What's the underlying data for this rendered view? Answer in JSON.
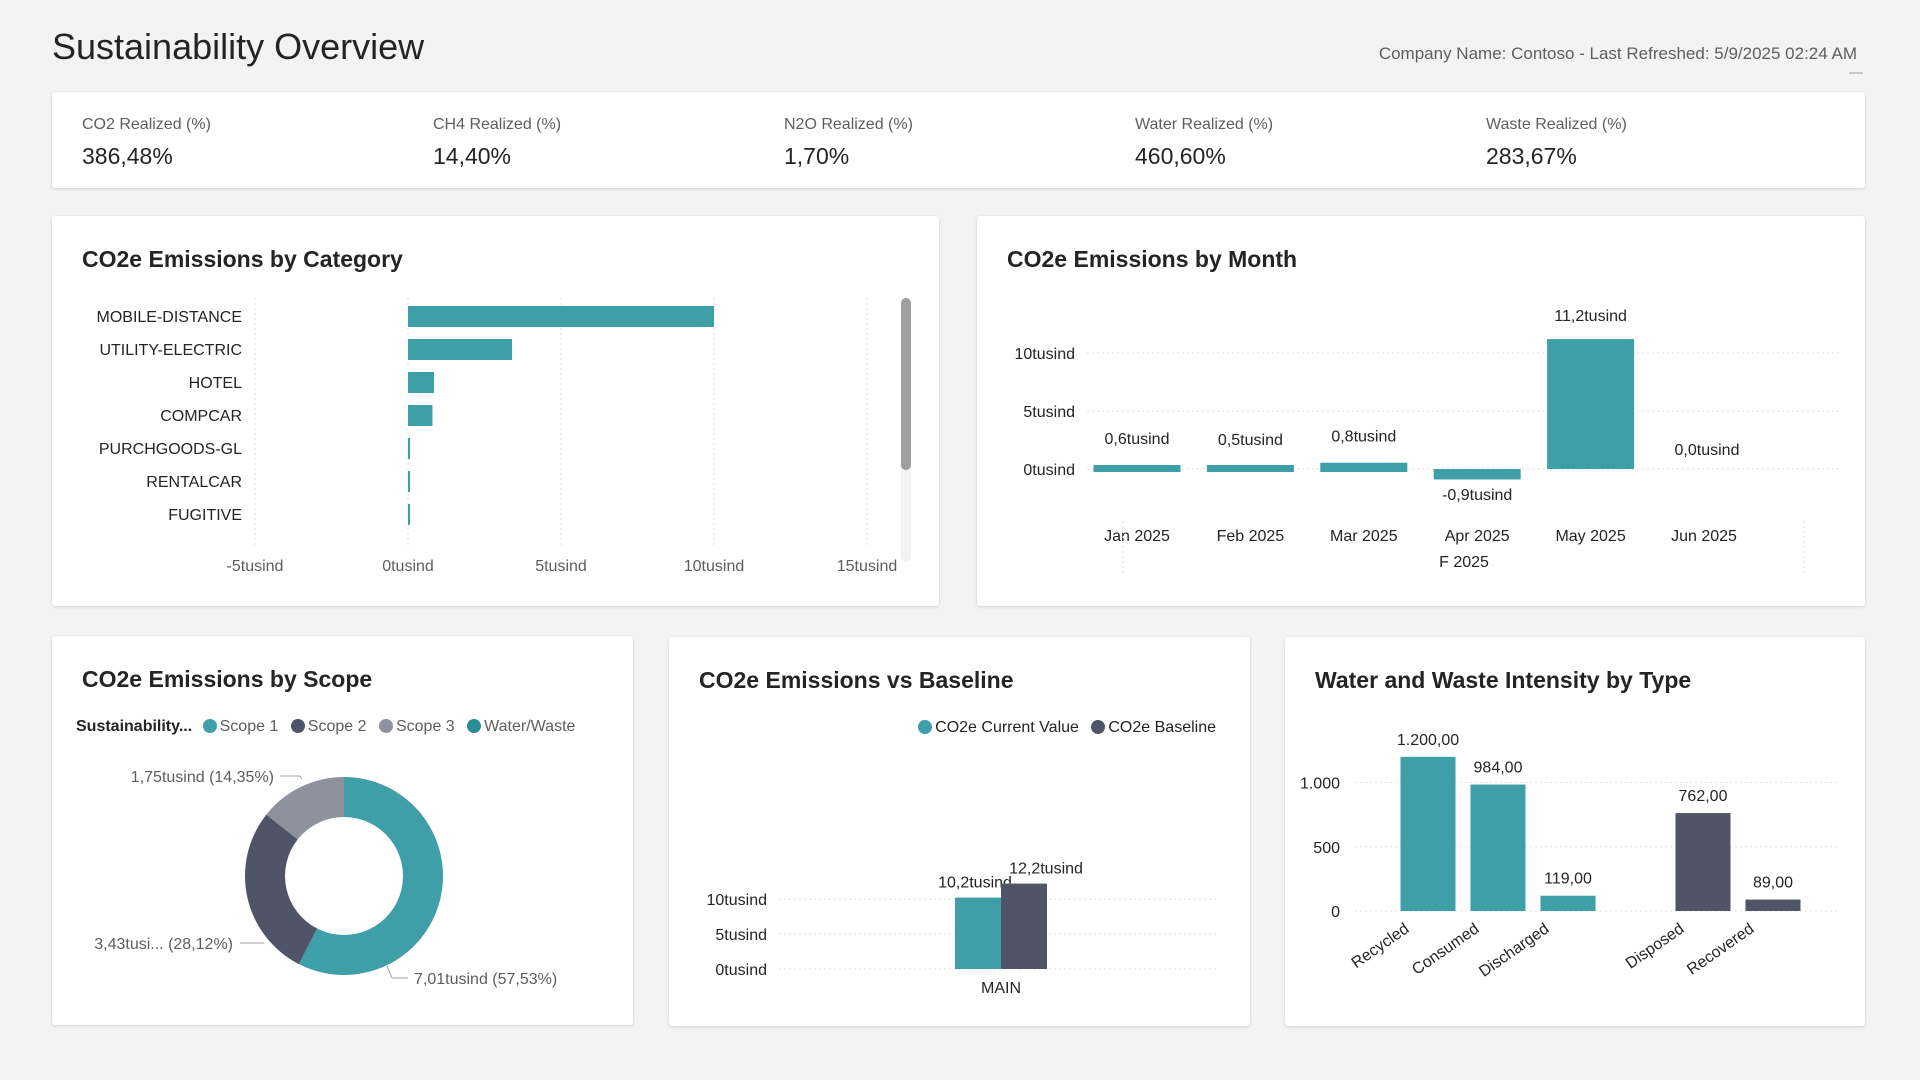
{
  "header": {
    "title": "Sustainability Overview",
    "refresh_info": "Company Name: Contoso - Last Refreshed: 5/9/2025 02:24 AM"
  },
  "kpis": [
    {
      "label": "CO2 Realized (%)",
      "value": "386,48%"
    },
    {
      "label": "CH4 Realized (%)",
      "value": "14,40%"
    },
    {
      "label": "N2O Realized (%)",
      "value": "1,70%"
    },
    {
      "label": "Water Realized (%)",
      "value": "460,60%"
    },
    {
      "label": "Waste Realized (%)",
      "value": "283,67%"
    }
  ],
  "colors": {
    "teal": "#3e9fa8",
    "dark": "#4f5566",
    "gray": "#8e929d",
    "water": "#2c8c95",
    "grid": "#e1dfdd"
  },
  "by_category": {
    "title": "CO2e Emissions by Category"
  },
  "by_month": {
    "title": "CO2e Emissions by Month",
    "group_label": "F 2025"
  },
  "by_scope": {
    "title": "CO2e Emissions by Scope",
    "legend_title": "Sustainability...",
    "legend": [
      "Scope 1",
      "Scope 2",
      "Scope 3",
      "Water/Waste"
    ]
  },
  "vs_baseline": {
    "title": "CO2e Emissions vs Baseline",
    "legend": [
      "CO2e Current Value",
      "CO2e Baseline"
    ]
  },
  "water_waste": {
    "title": "Water and Waste Intensity by Type"
  },
  "chart_data": [
    {
      "id": "category",
      "type": "bar",
      "orientation": "horizontal",
      "title": "CO2e Emissions by Category",
      "categories": [
        "MOBILE-DISTANCE",
        "UTILITY-ELECTRIC",
        "HOTEL",
        "COMPCAR",
        "PURCHGOODS-GL",
        "RENTALCAR",
        "FUGITIVE"
      ],
      "values": [
        10.0,
        3.4,
        0.85,
        0.8,
        0.05,
        0.05,
        0.03
      ],
      "xlim": [
        -5,
        15
      ],
      "ticks": [
        -5,
        0,
        5,
        10,
        15
      ],
      "tick_labels": [
        "-5tusind",
        "0tusind",
        "5tusind",
        "10tusind",
        "15tusind"
      ]
    },
    {
      "id": "month",
      "type": "bar",
      "title": "CO2e Emissions by Month",
      "categories": [
        "Jan 2025",
        "Feb 2025",
        "Mar 2025",
        "Apr 2025",
        "May 2025",
        "Jun 2025"
      ],
      "values": [
        0.6,
        0.5,
        0.8,
        -0.9,
        11.2,
        0.0
      ],
      "data_labels": [
        "0,6tusind",
        "0,5tusind",
        "0,8tusind",
        "-0,9tusind",
        "11,2tusind",
        "0,0tusind"
      ],
      "ylim": [
        -1.5,
        12
      ],
      "ticks": [
        0,
        5,
        10
      ],
      "tick_labels": [
        "0tusind",
        "5tusind",
        "10tusind"
      ]
    },
    {
      "id": "scope",
      "type": "pie",
      "title": "CO2e Emissions by Scope",
      "slices": [
        {
          "name": "Scope 1",
          "value": 57.53,
          "label": "7,01tusind (57,53%)"
        },
        {
          "name": "Scope 2",
          "value": 28.12,
          "label": "3,43tusi... (28,12%)"
        },
        {
          "name": "Scope 3",
          "value": 14.35,
          "label": "1,75tusind (14,35%)"
        }
      ]
    },
    {
      "id": "baseline",
      "type": "bar",
      "title": "CO2e Emissions vs Baseline",
      "categories": [
        "MAIN"
      ],
      "series": [
        {
          "name": "CO2e Current Value",
          "values": [
            10.2
          ],
          "labels": [
            "10,2tusind"
          ]
        },
        {
          "name": "CO2e Baseline",
          "values": [
            12.2
          ],
          "labels": [
            "12,2tusind"
          ]
        }
      ],
      "ylim": [
        0,
        13
      ],
      "ticks": [
        0,
        5,
        10
      ],
      "tick_labels": [
        "0tusind",
        "5tusind",
        "10tusind"
      ]
    },
    {
      "id": "waterwaste",
      "type": "bar",
      "title": "Water and Waste Intensity by Type",
      "categories": [
        "Recycled",
        "Consumed",
        "Discharged",
        "Disposed",
        "Recovered"
      ],
      "values": [
        1200,
        984,
        119,
        762,
        89
      ],
      "data_labels": [
        "1.200,00",
        "984,00",
        "119,00",
        "762,00",
        "89,00"
      ],
      "ylim": [
        0,
        1250
      ],
      "ticks": [
        0,
        500,
        1000
      ],
      "tick_labels": [
        "0",
        "500",
        "1.000"
      ]
    }
  ]
}
